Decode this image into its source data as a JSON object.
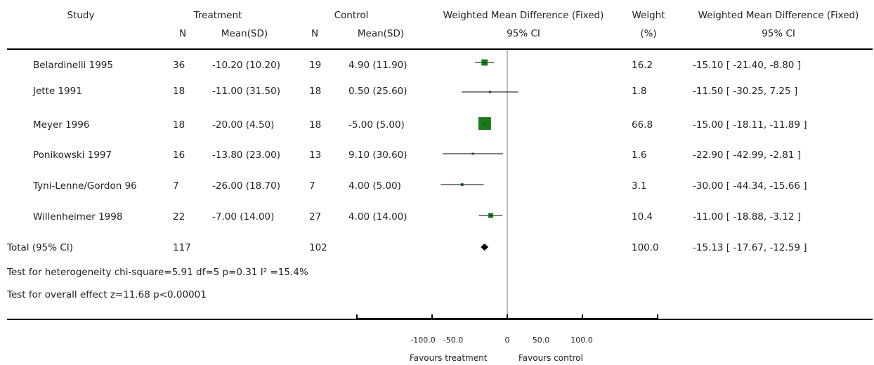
{
  "header": {
    "study": "Study",
    "treatment": "Treatment",
    "control": "Control",
    "wmd": "Weighted Mean Difference (Fixed)",
    "wmd_ci": "95% CI",
    "weight": "Weight",
    "weight_unit": "(%)",
    "wmd2": "Weighted Mean Difference (Fixed)",
    "wmd2_ci": "95% CI",
    "n1": "N",
    "mean1": "Mean(SD)",
    "n2": "N",
    "mean2": "Mean(SD)"
  },
  "rows": [
    {
      "study": "Belardinelli 1995",
      "tn": "36",
      "tmean": "-10.20 (10.20)",
      "cn": "19",
      "cmean": "4.90 (11.90)",
      "weight": "16.2",
      "ci": "-15.10 [ -21.40, -8.80 ]"
    },
    {
      "study": "Jette 1991",
      "tn": "18",
      "tmean": "-11.00 (31.50)",
      "cn": "18",
      "cmean": "0.50 (25.60)",
      "weight": "1.8",
      "ci": "-11.50 [ -30.25, 7.25 ]"
    },
    {
      "study": "Meyer 1996",
      "tn": "18",
      "tmean": "-20.00 (4.50)",
      "cn": "18",
      "cmean": "-5.00 (5.00)",
      "weight": "66.8",
      "ci": "-15.00 [ -18.11, -11.89 ]"
    },
    {
      "study": "Ponikowski 1997",
      "tn": "16",
      "tmean": "-13.80 (23.00)",
      "cn": "13",
      "cmean": "9.10 (30.60)",
      "weight": "1.6",
      "ci": "-22.90 [ -42.99, -2.81 ]"
    },
    {
      "study": "Tyni-Lenne/Gordon 96",
      "tn": "7",
      "tmean": "-26.00 (18.70)",
      "cn": "7",
      "cmean": "4.00 (5.00)",
      "weight": "3.1",
      "ci": "-30.00 [ -44.34, -15.66 ]"
    },
    {
      "study": "Willenheimer 1998",
      "tn": "22",
      "tmean": "-7.00 (14.00)",
      "cn": "27",
      "cmean": "4.00 (14.00)",
      "weight": "10.4",
      "ci": "-11.00 [ -18.88, -3.12 ]"
    }
  ],
  "total": {
    "label": "Total (95% CI)",
    "tn": "117",
    "cn": "102",
    "weight": "100.0",
    "ci": "-15.13 [ -17.67, -12.59 ]"
  },
  "heterogeneity": "Test for heterogeneity chi-square=5.91 df=5 p=0.31 I² =15.4%",
  "overall": "Test for overall effect z=11.68   p<0.00001",
  "axis": {
    "ticks": [
      "-100.0",
      "-50.0",
      "0",
      "50.0",
      "100.0"
    ],
    "left_label": "Favours treatment",
    "right_label": "Favours control"
  },
  "colors": {
    "marker": "#1a7a1a",
    "line": "#000000"
  },
  "chart_data": {
    "type": "forest",
    "xlim": [
      -100,
      100
    ],
    "xticks": [
      -100,
      -50,
      0,
      50,
      100
    ],
    "studies": [
      {
        "name": "Belardinelli 1995",
        "est": -15.1,
        "lo": -21.4,
        "hi": -8.8,
        "weight": 16.2
      },
      {
        "name": "Jette 1991",
        "est": -11.5,
        "lo": -30.25,
        "hi": 7.25,
        "weight": 1.8
      },
      {
        "name": "Meyer 1996",
        "est": -15.0,
        "lo": -18.11,
        "hi": -11.89,
        "weight": 66.8
      },
      {
        "name": "Ponikowski 1997",
        "est": -22.9,
        "lo": -42.99,
        "hi": -2.81,
        "weight": 1.6
      },
      {
        "name": "Tyni-Lenne/Gordon 96",
        "est": -30.0,
        "lo": -44.34,
        "hi": -15.66,
        "weight": 3.1
      },
      {
        "name": "Willenheimer 1998",
        "est": -11.0,
        "lo": -18.88,
        "hi": -3.12,
        "weight": 10.4
      }
    ],
    "total": {
      "est": -15.13,
      "lo": -17.67,
      "hi": -12.59,
      "weight": 100.0
    }
  }
}
